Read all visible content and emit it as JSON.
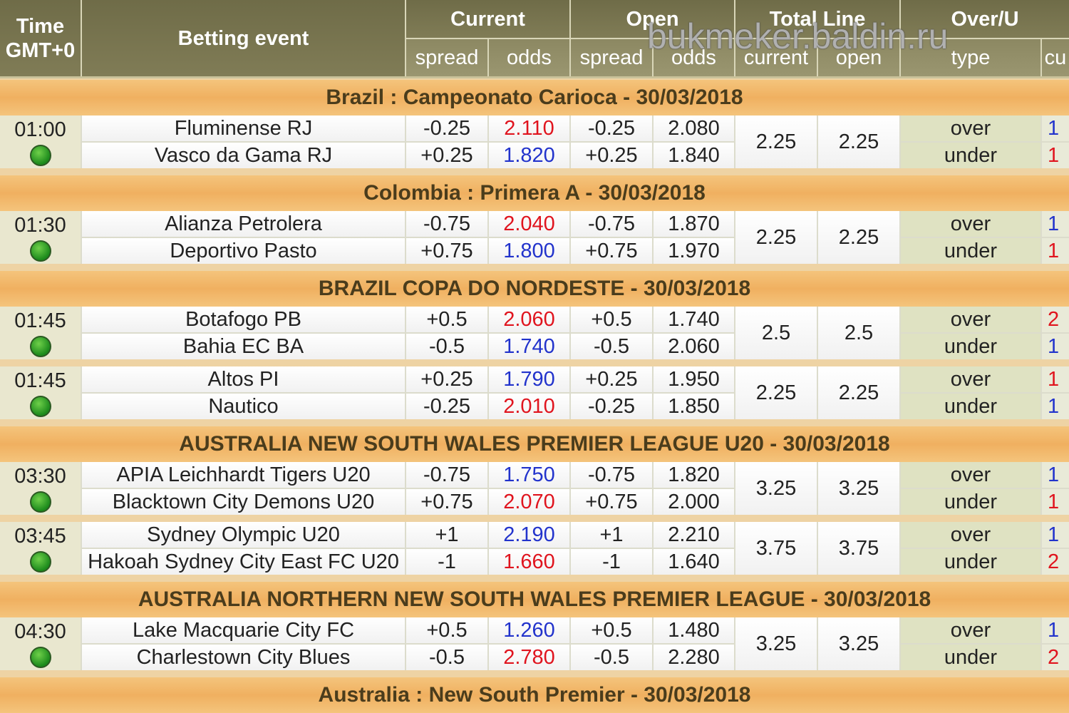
{
  "header": {
    "time": [
      "Time",
      "GMT+0"
    ],
    "event": "Betting event",
    "groups": [
      "Current",
      "Open",
      "Total Line",
      "Over/U"
    ],
    "sub": [
      "spread",
      "odds",
      "spread",
      "odds",
      "current",
      "open",
      "type",
      "cu"
    ]
  },
  "watermark": "bukmeker.baldin.ru",
  "leagues": [
    {
      "name": "Brazil : Campeonato Carioca - 30/03/2018",
      "matches": [
        {
          "time": "01:00",
          "teams": [
            "Fluminense RJ",
            "Vasco da Gama RJ"
          ],
          "cur_spread": [
            "-0.25",
            "+0.25"
          ],
          "cur_odds": [
            "2.110",
            "1.820"
          ],
          "cur_odds_colors": [
            "#e0141e",
            "#2233cc"
          ],
          "open_spread": [
            "-0.25",
            "+0.25"
          ],
          "open_odds": [
            "2.080",
            "1.840"
          ],
          "total_current": "2.25",
          "total_open": "2.25",
          "types": [
            "over",
            "under"
          ],
          "extra": [
            "1",
            "1"
          ],
          "extra_colors": [
            "#2233cc",
            "#e0141e"
          ]
        }
      ]
    },
    {
      "name": "Colombia : Primera A - 30/03/2018",
      "matches": [
        {
          "time": "01:30",
          "teams": [
            "Alianza Petrolera",
            "Deportivo Pasto"
          ],
          "cur_spread": [
            "-0.75",
            "+0.75"
          ],
          "cur_odds": [
            "2.040",
            "1.800"
          ],
          "cur_odds_colors": [
            "#e0141e",
            "#2233cc"
          ],
          "open_spread": [
            "-0.75",
            "+0.75"
          ],
          "open_odds": [
            "1.870",
            "1.970"
          ],
          "total_current": "2.25",
          "total_open": "2.25",
          "types": [
            "over",
            "under"
          ],
          "extra": [
            "1",
            "1"
          ],
          "extra_colors": [
            "#2233cc",
            "#e0141e"
          ]
        }
      ]
    },
    {
      "name": "BRAZIL COPA DO NORDESTE - 30/03/2018",
      "matches": [
        {
          "time": "01:45",
          "teams": [
            "Botafogo PB",
            "Bahia EC BA"
          ],
          "cur_spread": [
            "+0.5",
            "-0.5"
          ],
          "cur_odds": [
            "2.060",
            "1.740"
          ],
          "cur_odds_colors": [
            "#e0141e",
            "#2233cc"
          ],
          "open_spread": [
            "+0.5",
            "-0.5"
          ],
          "open_odds": [
            "1.740",
            "2.060"
          ],
          "total_current": "2.5",
          "total_open": "2.5",
          "types": [
            "over",
            "under"
          ],
          "extra": [
            "2",
            "1"
          ],
          "extra_colors": [
            "#e0141e",
            "#2233cc"
          ]
        },
        {
          "time": "01:45",
          "teams": [
            "Altos PI",
            "Nautico"
          ],
          "cur_spread": [
            "+0.25",
            "-0.25"
          ],
          "cur_odds": [
            "1.790",
            "2.010"
          ],
          "cur_odds_colors": [
            "#2233cc",
            "#e0141e"
          ],
          "open_spread": [
            "+0.25",
            "-0.25"
          ],
          "open_odds": [
            "1.950",
            "1.850"
          ],
          "total_current": "2.25",
          "total_open": "2.25",
          "types": [
            "over",
            "under"
          ],
          "extra": [
            "1",
            "1"
          ],
          "extra_colors": [
            "#e0141e",
            "#2233cc"
          ]
        }
      ]
    },
    {
      "name": "AUSTRALIA NEW SOUTH WALES PREMIER LEAGUE U20 - 30/03/2018",
      "matches": [
        {
          "time": "03:30",
          "teams": [
            "APIA Leichhardt Tigers U20",
            "Blacktown City Demons U20"
          ],
          "cur_spread": [
            "-0.75",
            "+0.75"
          ],
          "cur_odds": [
            "1.750",
            "2.070"
          ],
          "cur_odds_colors": [
            "#2233cc",
            "#e0141e"
          ],
          "open_spread": [
            "-0.75",
            "+0.75"
          ],
          "open_odds": [
            "1.820",
            "2.000"
          ],
          "total_current": "3.25",
          "total_open": "3.25",
          "types": [
            "over",
            "under"
          ],
          "extra": [
            "1",
            "1"
          ],
          "extra_colors": [
            "#2233cc",
            "#e0141e"
          ]
        },
        {
          "time": "03:45",
          "teams": [
            "Sydney Olympic U20",
            "Hakoah Sydney City East FC U20"
          ],
          "cur_spread": [
            "+1",
            "-1"
          ],
          "cur_odds": [
            "2.190",
            "1.660"
          ],
          "cur_odds_colors": [
            "#2233cc",
            "#e0141e"
          ],
          "open_spread": [
            "+1",
            "-1"
          ],
          "open_odds": [
            "2.210",
            "1.640"
          ],
          "total_current": "3.75",
          "total_open": "3.75",
          "types": [
            "over",
            "under"
          ],
          "extra": [
            "1",
            "2"
          ],
          "extra_colors": [
            "#2233cc",
            "#e0141e"
          ]
        }
      ]
    },
    {
      "name": "AUSTRALIA NORTHERN NEW SOUTH WALES PREMIER LEAGUE - 30/03/2018",
      "matches": [
        {
          "time": "04:30",
          "teams": [
            "Lake Macquarie City FC",
            "Charlestown City Blues"
          ],
          "cur_spread": [
            "+0.5",
            "-0.5"
          ],
          "cur_odds": [
            "1.260",
            "2.780"
          ],
          "cur_odds_colors": [
            "#2233cc",
            "#e0141e"
          ],
          "open_spread": [
            "+0.5",
            "-0.5"
          ],
          "open_odds": [
            "1.480",
            "2.280"
          ],
          "total_current": "3.25",
          "total_open": "3.25",
          "types": [
            "over",
            "under"
          ],
          "extra": [
            "1",
            "2"
          ],
          "extra_colors": [
            "#2233cc",
            "#e0141e"
          ]
        }
      ]
    },
    {
      "name": "Australia : New South Premier - 30/03/2018",
      "matches": []
    }
  ]
}
